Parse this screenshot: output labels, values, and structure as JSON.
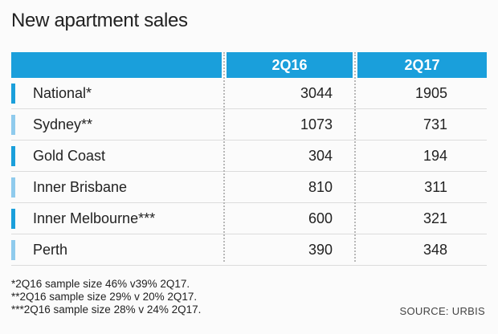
{
  "title": "New apartment sales",
  "chart_data": {
    "type": "table",
    "title": "New apartment sales",
    "columns": [
      "",
      "2Q16",
      "2Q17"
    ],
    "rows": [
      {
        "label": "National*",
        "2Q16": 3044,
        "2Q17": 1905,
        "accent": "#1a9fdb"
      },
      {
        "label": "Sydney**",
        "2Q16": 1073,
        "2Q17": 731,
        "accent": "#8fcbed"
      },
      {
        "label": "Gold Coast",
        "2Q16": 304,
        "2Q17": 194,
        "accent": "#1a9fdb"
      },
      {
        "label": "Inner Brisbane",
        "2Q16": 810,
        "2Q17": 311,
        "accent": "#8fcbed"
      },
      {
        "label": "Inner Melbourne***",
        "2Q16": 600,
        "2Q17": 321,
        "accent": "#1a9fdb"
      },
      {
        "label": "Perth",
        "2Q16": 390,
        "2Q17": 348,
        "accent": "#8fcbed"
      }
    ]
  },
  "footnotes": [
    "*2Q16 sample size 46% v39% 2Q17.",
    "**2Q16 sample size 29%  v 20% 2Q17.",
    "***2Q16 sample size 28% v 24% 2Q17."
  ],
  "source": "SOURCE: URBIS",
  "colors": {
    "header": "#1a9fdb",
    "accent_dark": "#1a9fdb",
    "accent_light": "#8fcbed"
  }
}
